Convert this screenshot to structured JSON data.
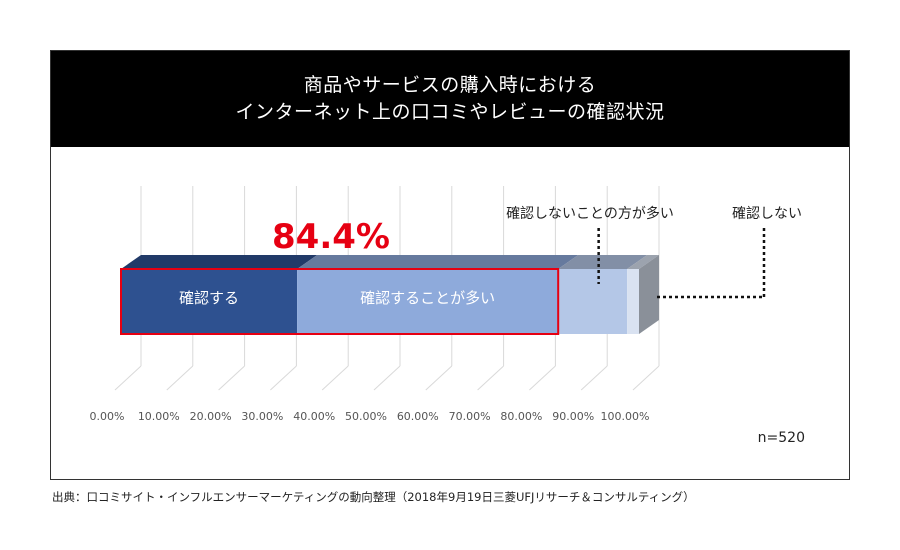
{
  "chart_data": {
    "type": "bar",
    "orientation": "horizontal-stacked-100",
    "title_lines": [
      "商品やサービスの購入時における",
      "インターネット上の口コミやレビューの確認状況"
    ],
    "categories": [
      "確認する",
      "確認することが多い",
      "確認しないことの方が多い",
      "確認しない"
    ],
    "values": [
      34.0,
      50.4,
      13.3,
      2.3
    ],
    "unit": "%",
    "xlim": [
      0,
      100
    ],
    "x_ticks": [
      "0.00%",
      "10.00%",
      "20.00%",
      "30.00%",
      "40.00%",
      "50.00%",
      "60.00%",
      "70.00%",
      "80.00%",
      "90.00%",
      "100.00%"
    ],
    "highlight": {
      "label": "84.4%",
      "covers": [
        "確認する",
        "確認することが多い"
      ],
      "color": "#e60012"
    },
    "colors": [
      "#2e5190",
      "#8eaadb",
      "#b4c7e7",
      "#d9e2f1"
    ],
    "n_label": "n=520",
    "grid": true,
    "legend": "none"
  },
  "source": "出典：口コミサイト・インフルエンサーマーケティングの動向整理（2018年9月19日三菱UFJリサーチ＆コンサルティング）"
}
